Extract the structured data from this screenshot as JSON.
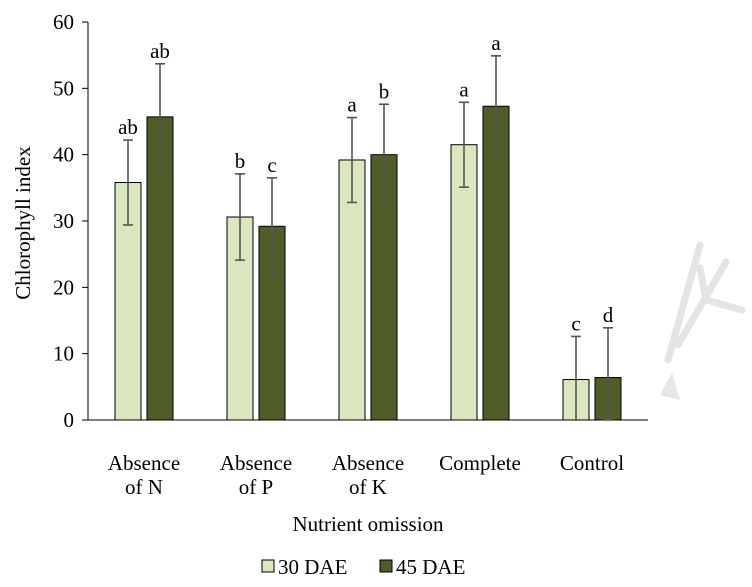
{
  "chart_data": {
    "type": "bar",
    "title": "",
    "xlabel": "Nutrient omission",
    "ylabel": "Chlorophyll index",
    "ylim": [
      0,
      60
    ],
    "yticks": [
      0,
      10,
      20,
      30,
      40,
      50,
      60
    ],
    "grid": false,
    "legend_position": "bottom",
    "categories": [
      [
        "Absence",
        "of N"
      ],
      [
        "Absence",
        "of P"
      ],
      [
        "Absence",
        "of K"
      ],
      [
        "Complete"
      ],
      [
        "Control"
      ]
    ],
    "series": [
      {
        "name": "30 DAE",
        "color": "#d9e7bf",
        "values": [
          35.8,
          30.6,
          39.2,
          41.5,
          6.1
        ],
        "errors": [
          6.4,
          6.5,
          6.4,
          6.4,
          6.5
        ],
        "labels": [
          "ab",
          "b",
          "a",
          "a",
          "c"
        ]
      },
      {
        "name": "45 DAE",
        "color": "#4d5e28",
        "values": [
          45.7,
          29.2,
          40.0,
          47.3,
          6.4
        ],
        "errors": [
          8.0,
          7.3,
          7.6,
          7.6,
          7.5
        ],
        "labels": [
          "ab",
          "c",
          "b",
          "a",
          "d"
        ]
      }
    ]
  }
}
